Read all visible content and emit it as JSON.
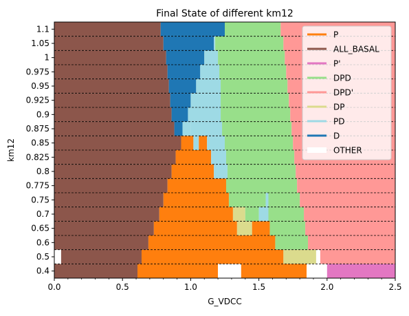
{
  "chart_data": {
    "type": "area",
    "title": "Final State of different km12",
    "xlabel": "G_VDCC",
    "ylabel": "km12",
    "xlim": [
      0,
      2.5
    ],
    "x_ticks": [
      "0.0",
      "0.5",
      "1.0",
      "1.5",
      "2.0",
      "2.5"
    ],
    "categories": [
      "0.4",
      "0.5",
      "0.6",
      "0.65",
      "0.7",
      "0.75",
      "0.775",
      "0.8",
      "0.825",
      "0.85",
      "0.875",
      "0.9",
      "0.925",
      "0.95",
      "0.975",
      "1",
      "1.05",
      "1.1"
    ],
    "grid": "dashed horizontal lines between categories",
    "legend_position": "top-right",
    "colors": {
      "P": "#ff7f0e",
      "ALL_BASAL": "#8c564b",
      "P'": "#e377c2",
      "DPD": "#98df8a",
      "DPD'": "#ff9896",
      "DP": "#dbdb8d",
      "PD": "#9edae5",
      "D": "#1f77b4",
      "OTHER": "#ffffff"
    },
    "legend": [
      "P",
      "ALL_BASAL",
      "P'",
      "DPD",
      "DPD'",
      "DP",
      "PD",
      "D",
      "OTHER"
    ],
    "rows": [
      {
        "km12": "0.4",
        "segments": [
          [
            "ALL_BASAL",
            0,
            0.61
          ],
          [
            "P",
            0.61,
            1.2
          ],
          [
            "OTHER",
            1.2,
            1.37
          ],
          [
            "P",
            1.37,
            1.85
          ],
          [
            "OTHER",
            1.85,
            2.0
          ],
          [
            "P'",
            2.0,
            2.5
          ]
        ]
      },
      {
        "km12": "0.5",
        "segments": [
          [
            "OTHER",
            0,
            0.05
          ],
          [
            "ALL_BASAL",
            0.05,
            0.64
          ],
          [
            "P",
            0.64,
            1.68
          ],
          [
            "DP",
            1.68,
            1.92
          ],
          [
            "OTHER",
            1.92,
            1.95
          ],
          [
            "DPD'",
            1.95,
            2.5
          ]
        ]
      },
      {
        "km12": "0.6",
        "segments": [
          [
            "ALL_BASAL",
            0,
            0.69
          ],
          [
            "P",
            0.69,
            1.62
          ],
          [
            "DPD",
            1.62,
            1.86
          ],
          [
            "DPD'",
            1.86,
            2.5
          ]
        ]
      },
      {
        "km12": "0.65",
        "segments": [
          [
            "ALL_BASAL",
            0,
            0.73
          ],
          [
            "P",
            0.73,
            1.34
          ],
          [
            "DP",
            1.34,
            1.45
          ],
          [
            "P",
            1.45,
            1.58
          ],
          [
            "DPD",
            1.58,
            1.84
          ],
          [
            "DPD'",
            1.84,
            2.5
          ]
        ]
      },
      {
        "km12": "0.7",
        "segments": [
          [
            "ALL_BASAL",
            0,
            0.77
          ],
          [
            "P",
            0.77,
            1.31
          ],
          [
            "DP",
            1.31,
            1.4
          ],
          [
            "DPD",
            1.4,
            1.5
          ],
          [
            "PD",
            1.5,
            1.57
          ],
          [
            "DPD",
            1.57,
            1.83
          ],
          [
            "DPD'",
            1.83,
            2.5
          ]
        ]
      },
      {
        "km12": "0.75",
        "segments": [
          [
            "ALL_BASAL",
            0,
            0.8
          ],
          [
            "P",
            0.8,
            1.28
          ],
          [
            "DPD",
            1.28,
            1.55
          ],
          [
            "PD",
            1.55,
            1.57
          ],
          [
            "DPD",
            1.57,
            1.8
          ],
          [
            "DPD'",
            1.8,
            2.5
          ]
        ]
      },
      {
        "km12": "0.775",
        "segments": [
          [
            "ALL_BASAL",
            0,
            0.83
          ],
          [
            "P",
            0.83,
            1.26
          ],
          [
            "DPD",
            1.26,
            1.78
          ],
          [
            "DPD'",
            1.78,
            2.5
          ]
        ]
      },
      {
        "km12": "0.8",
        "segments": [
          [
            "ALL_BASAL",
            0,
            0.86
          ],
          [
            "P",
            0.86,
            1.17
          ],
          [
            "PD",
            1.17,
            1.27
          ],
          [
            "DPD",
            1.27,
            1.77
          ],
          [
            "DPD'",
            1.77,
            2.5
          ]
        ]
      },
      {
        "km12": "0.825",
        "segments": [
          [
            "ALL_BASAL",
            0,
            0.89
          ],
          [
            "P",
            0.89,
            1.15
          ],
          [
            "PD",
            1.15,
            1.26
          ],
          [
            "DPD",
            1.26,
            1.76
          ],
          [
            "DPD'",
            1.76,
            2.5
          ]
        ]
      },
      {
        "km12": "0.85",
        "segments": [
          [
            "ALL_BASAL",
            0,
            0.93
          ],
          [
            "P",
            0.93,
            1.02
          ],
          [
            "PD",
            1.02,
            1.06
          ],
          [
            "P",
            1.06,
            1.12
          ],
          [
            "PD",
            1.12,
            1.25
          ],
          [
            "DPD",
            1.25,
            1.75
          ],
          [
            "DPD'",
            1.75,
            2.5
          ]
        ]
      },
      {
        "km12": "0.875",
        "segments": [
          [
            "ALL_BASAL",
            0,
            0.88
          ],
          [
            "D",
            0.88,
            0.94
          ],
          [
            "PD",
            0.94,
            1.0
          ],
          [
            "PD",
            1.0,
            1.23
          ],
          [
            "DPD",
            1.23,
            1.74
          ],
          [
            "DPD'",
            1.74,
            2.5
          ]
        ]
      },
      {
        "km12": "0.9",
        "segments": [
          [
            "ALL_BASAL",
            0,
            0.86
          ],
          [
            "D",
            0.86,
            0.98
          ],
          [
            "PD",
            0.98,
            1.22
          ],
          [
            "DPD",
            1.22,
            1.73
          ],
          [
            "DPD'",
            1.73,
            2.5
          ]
        ]
      },
      {
        "km12": "0.925",
        "segments": [
          [
            "ALL_BASAL",
            0,
            0.85
          ],
          [
            "D",
            0.85,
            1.0
          ],
          [
            "PD",
            1.0,
            1.22
          ],
          [
            "DPD",
            1.22,
            1.72
          ],
          [
            "DPD'",
            1.72,
            2.5
          ]
        ]
      },
      {
        "km12": "0.95",
        "segments": [
          [
            "ALL_BASAL",
            0,
            0.84
          ],
          [
            "D",
            0.84,
            1.04
          ],
          [
            "PD",
            1.04,
            1.22
          ],
          [
            "DPD",
            1.22,
            1.71
          ],
          [
            "DPD'",
            1.71,
            2.5
          ]
        ]
      },
      {
        "km12": "0.975",
        "segments": [
          [
            "ALL_BASAL",
            0,
            0.83
          ],
          [
            "D",
            0.83,
            1.07
          ],
          [
            "PD",
            1.07,
            1.21
          ],
          [
            "DPD",
            1.21,
            1.7
          ],
          [
            "DPD'",
            1.7,
            2.5
          ]
        ]
      },
      {
        "km12": "1",
        "segments": [
          [
            "ALL_BASAL",
            0,
            0.82
          ],
          [
            "D",
            0.82,
            1.1
          ],
          [
            "PD",
            1.1,
            1.2
          ],
          [
            "DPD",
            1.2,
            1.69
          ],
          [
            "DPD'",
            1.69,
            2.5
          ]
        ]
      },
      {
        "km12": "1.05",
        "segments": [
          [
            "ALL_BASAL",
            0,
            0.8
          ],
          [
            "D",
            0.8,
            1.17
          ],
          [
            "PD",
            1.17,
            1.18
          ],
          [
            "DPD",
            1.18,
            1.68
          ],
          [
            "DPD'",
            1.68,
            2.5
          ]
        ]
      },
      {
        "km12": "1.1",
        "segments": [
          [
            "ALL_BASAL",
            0,
            0.78
          ],
          [
            "D",
            0.78,
            1.25
          ],
          [
            "DPD",
            1.25,
            1.66
          ],
          [
            "DPD'",
            1.66,
            2.5
          ]
        ]
      }
    ]
  }
}
